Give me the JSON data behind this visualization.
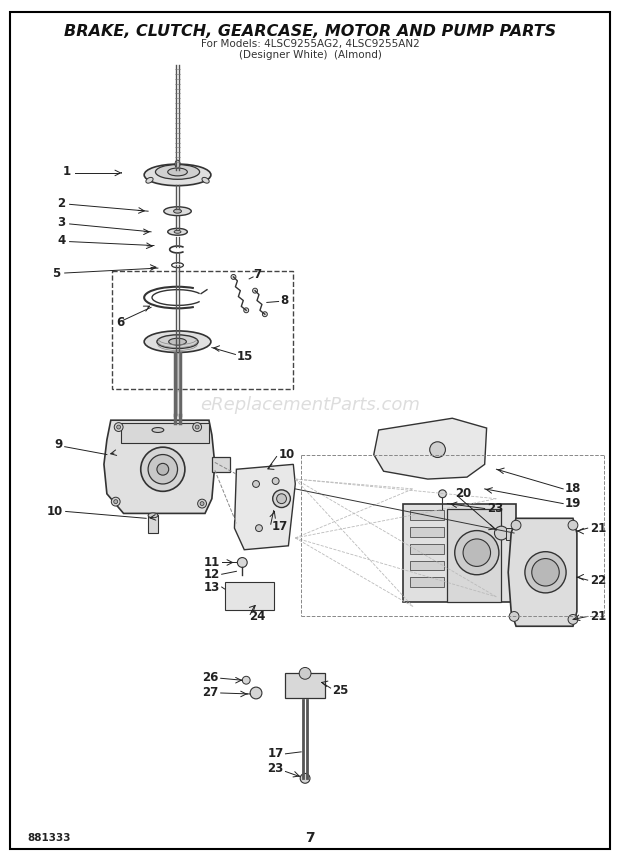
{
  "title": "BRAKE, CLUTCH, GEARCASE, MOTOR AND PUMP PARTS",
  "subtitle1": "For Models: 4LSC9255AG2, 4LSC9255AN2",
  "subtitle2": "(Designer White)  (Almond)",
  "watermark": "eReplacementParts.com",
  "page_num": "7",
  "doc_num": "881333",
  "bg_color": "#ffffff",
  "border_color": "#000000",
  "lc": "#222222",
  "dc": "#333333"
}
